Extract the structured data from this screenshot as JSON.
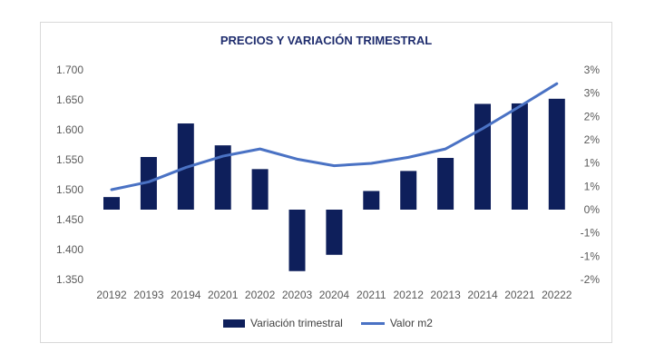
{
  "chart_data": {
    "type": "bar+line",
    "title": "PRECIOS Y VARIACIÓN TRIMESTRAL",
    "categories": [
      "20192",
      "20193",
      "20194",
      "20201",
      "20202",
      "20203",
      "20204",
      "20211",
      "20212",
      "20213",
      "20214",
      "20221",
      "20222"
    ],
    "left_axis": {
      "ticks": [
        "1.350",
        "1.400",
        "1.450",
        "1.500",
        "1.550",
        "1.600",
        "1.650",
        "1.700"
      ],
      "ylim": [
        1350,
        1700
      ]
    },
    "right_axis": {
      "ticks": [
        "-2%",
        "-1%",
        "-1%",
        "0%",
        "1%",
        "1%",
        "2%",
        "2%",
        "3%",
        "3%"
      ],
      "ylim": [
        -1.5,
        3.0
      ]
    },
    "series": [
      {
        "name": "Variación trimestral",
        "type": "bar",
        "axis": "right",
        "color": "#0e1f5b",
        "values": [
          0.27,
          1.13,
          1.85,
          1.38,
          0.87,
          -1.32,
          -0.97,
          0.4,
          0.83,
          1.11,
          2.27,
          2.28,
          2.38
        ]
      },
      {
        "name": "Valor m2",
        "type": "line",
        "axis": "left",
        "color": "#4a72c4",
        "values": [
          1500,
          1513,
          1537,
          1556,
          1568,
          1551,
          1540,
          1544,
          1554,
          1568,
          1602,
          1639,
          1677
        ]
      }
    ],
    "grid": false,
    "legend": "bottom"
  }
}
